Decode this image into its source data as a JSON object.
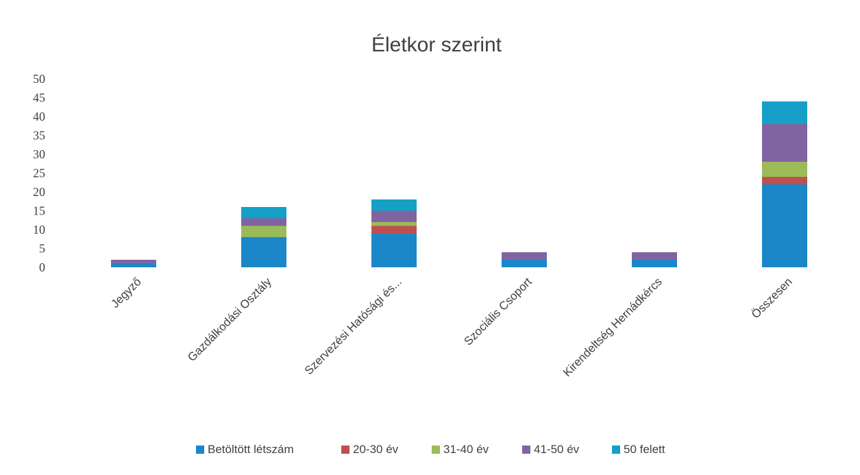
{
  "chart_data": {
    "type": "bar",
    "stacked": true,
    "title": "Életkor szerint",
    "xlabel": "",
    "ylabel": "",
    "ylim": [
      0,
      50
    ],
    "yticks": [
      0,
      5,
      10,
      15,
      20,
      25,
      30,
      35,
      40,
      45,
      50
    ],
    "grid": false,
    "legend_position": "bottom",
    "categories": [
      "Jegyző",
      "Gazdálkodási Osztály",
      "Szervezési Hatósági és...",
      "Szociális Csoport",
      "Kirendeltség Hernádkércs",
      "Összesen"
    ],
    "series": [
      {
        "name": "Betöltött létszám",
        "color": "#1b87c9",
        "values": [
          1,
          8,
          9,
          2,
          2,
          22
        ]
      },
      {
        "name": "20-30 év",
        "color": "#c0504d",
        "values": [
          0,
          0,
          2,
          0,
          0,
          2
        ]
      },
      {
        "name": "31-40 év",
        "color": "#9bbb59",
        "values": [
          0,
          3,
          1,
          0,
          0,
          4
        ]
      },
      {
        "name": "41-50 év",
        "color": "#8064a2",
        "values": [
          1,
          2,
          3,
          2,
          2,
          10
        ]
      },
      {
        "name": "50 felett",
        "color": "#16a0c8",
        "values": [
          0,
          3,
          3,
          0,
          0,
          6
        ]
      }
    ]
  }
}
